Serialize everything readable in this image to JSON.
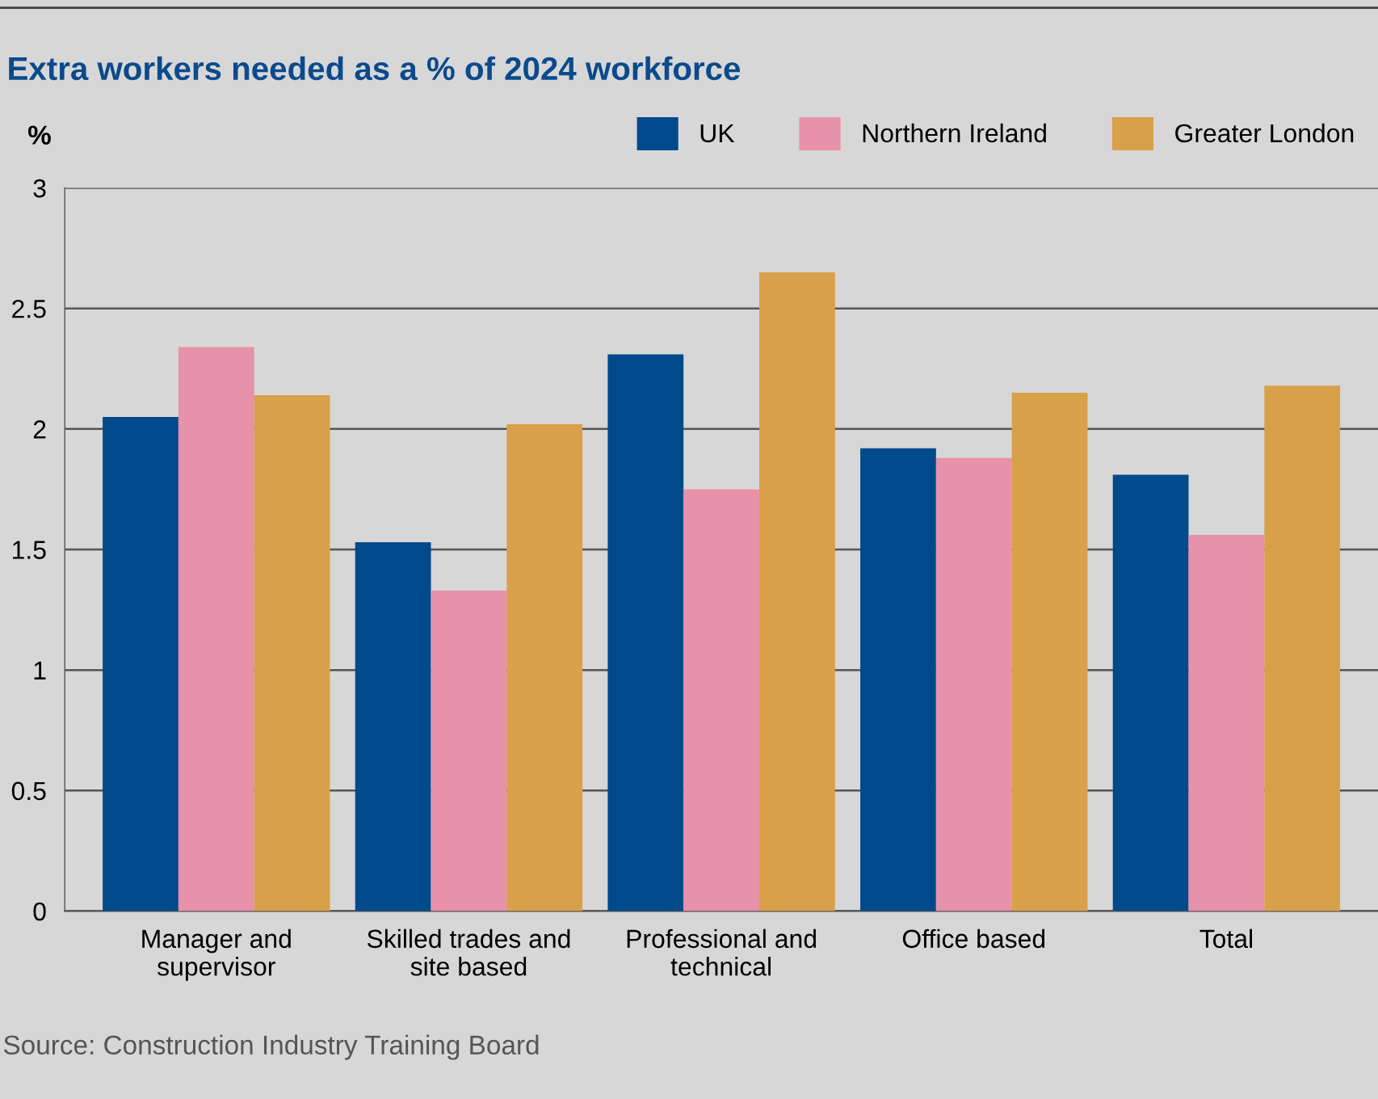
{
  "chart_data": {
    "type": "bar",
    "title": "Extra workers needed as a % of 2024 workforce",
    "ylabel": "%",
    "categories": [
      "Manager and\nsupervisor",
      "Skilled trades and\nsite based",
      "Professional and\ntechnical",
      "Office based",
      "Total"
    ],
    "series": [
      {
        "name": "UK",
        "color": "#004a8c",
        "values": [
          2.05,
          1.53,
          2.31,
          1.92,
          1.81
        ]
      },
      {
        "name": "Northern Ireland",
        "color": "#e891aa",
        "values": [
          2.34,
          1.33,
          1.75,
          1.88,
          1.56
        ]
      },
      {
        "name": "Greater London",
        "color": "#d9a04a",
        "values": [
          2.14,
          2.02,
          2.65,
          2.15,
          2.18
        ]
      }
    ],
    "ylim": [
      0,
      3
    ],
    "yticks": [
      0,
      0.5,
      1,
      1.5,
      2,
      2.5,
      3
    ],
    "grid": "y",
    "legend": "top right",
    "annotations": [
      "Source: Construction Industry Training Board"
    ]
  }
}
